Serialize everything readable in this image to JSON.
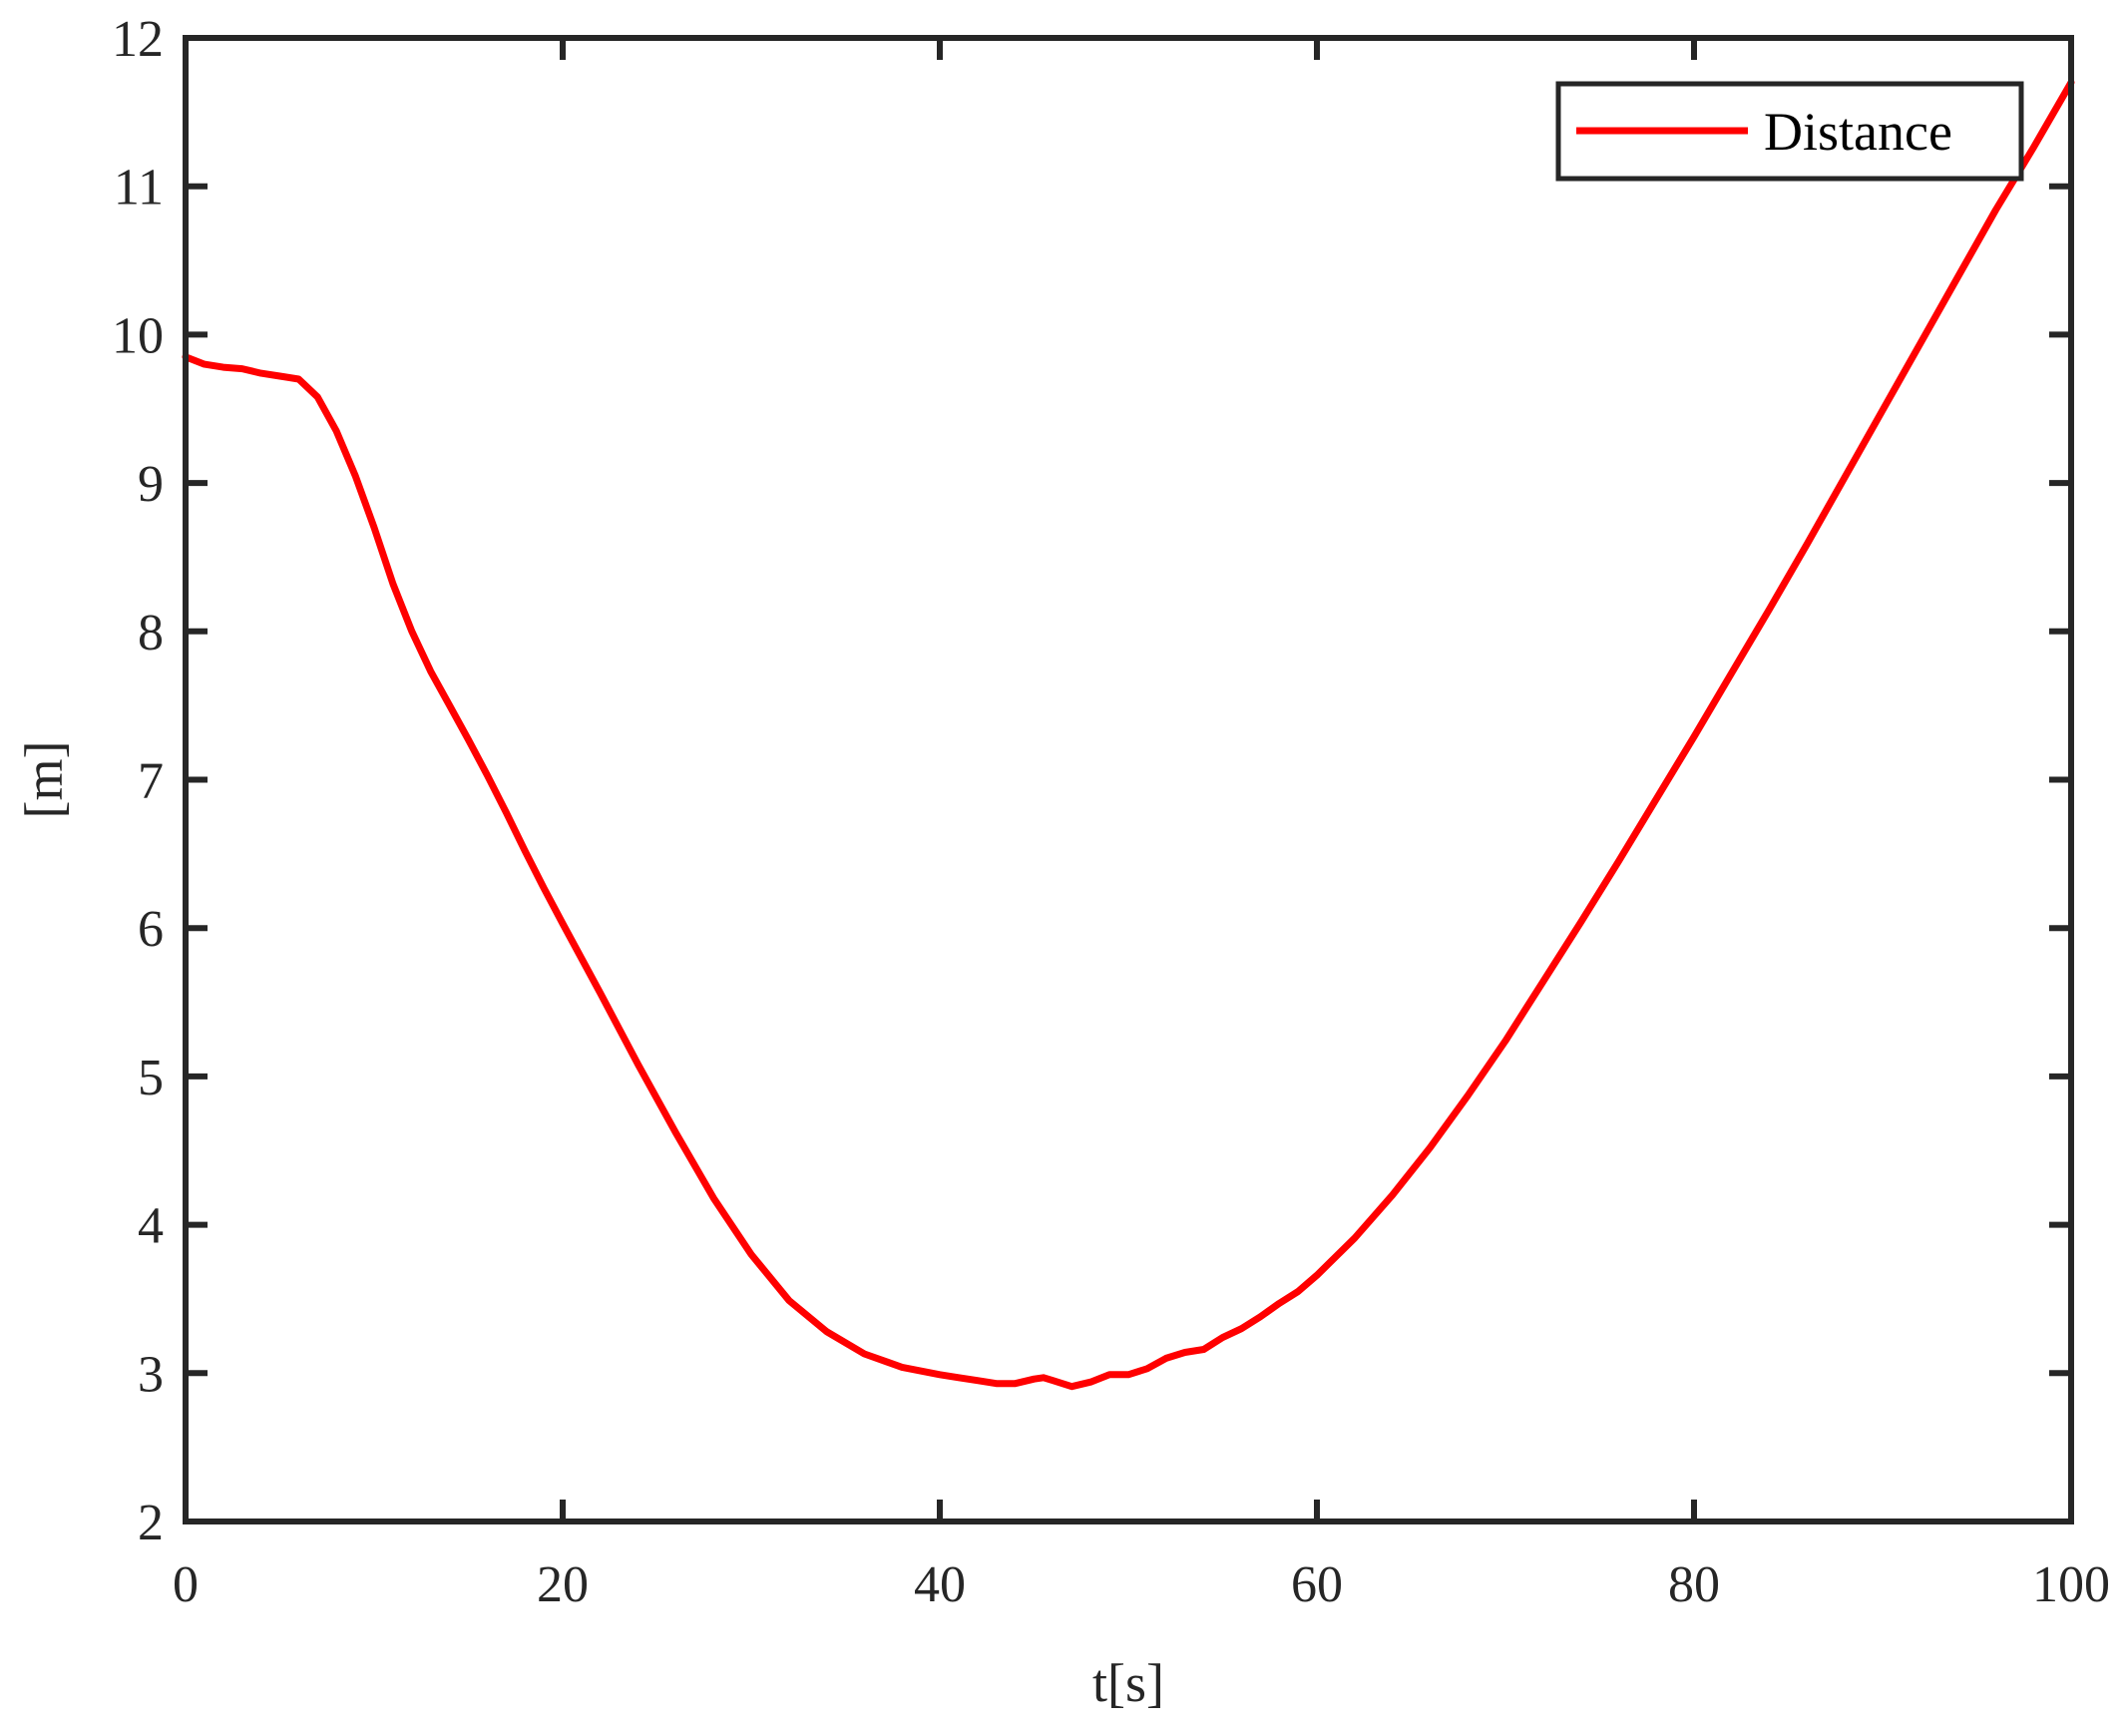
{
  "chart_data": {
    "type": "line",
    "title": "",
    "xlabel": "t[s]",
    "ylabel": "[m]",
    "xlim": [
      0,
      100
    ],
    "ylim": [
      2,
      12
    ],
    "xticks": [
      0,
      20,
      40,
      60,
      80,
      100
    ],
    "yticks": [
      2,
      3,
      4,
      5,
      6,
      7,
      8,
      9,
      10,
      11,
      12
    ],
    "grid": false,
    "legend_position": "top-right",
    "series": [
      {
        "name": "Distance",
        "color": "#ff0000",
        "x": [
          0,
          1,
          2,
          3,
          4,
          5,
          6,
          7,
          8,
          9,
          10,
          11,
          12,
          13,
          14,
          15,
          16,
          17,
          18,
          19,
          20,
          22,
          24,
          26,
          28,
          30,
          32,
          34,
          36,
          38,
          40,
          41,
          42,
          43,
          44,
          45,
          45.5,
          46,
          47,
          48,
          49,
          50,
          51,
          52,
          53,
          54,
          55,
          56,
          57,
          58,
          59,
          60,
          62,
          64,
          66,
          68,
          70,
          72,
          74,
          76,
          78,
          80,
          82,
          84,
          86,
          88,
          90,
          92,
          94,
          96,
          98,
          100
        ],
        "y": [
          9.85,
          9.8,
          9.78,
          9.77,
          9.74,
          9.72,
          9.7,
          9.58,
          9.35,
          9.05,
          8.7,
          8.32,
          8.0,
          7.73,
          7.5,
          7.27,
          7.03,
          6.78,
          6.52,
          6.27,
          6.03,
          5.56,
          5.08,
          4.62,
          4.18,
          3.8,
          3.49,
          3.28,
          3.13,
          3.04,
          2.99,
          2.97,
          2.95,
          2.93,
          2.93,
          2.96,
          2.97,
          2.95,
          2.91,
          2.94,
          2.99,
          2.99,
          3.03,
          3.1,
          3.14,
          3.16,
          3.24,
          3.3,
          3.38,
          3.47,
          3.55,
          3.66,
          3.91,
          4.2,
          4.52,
          4.87,
          5.24,
          5.64,
          6.04,
          6.45,
          6.87,
          7.29,
          7.72,
          8.15,
          8.59,
          9.04,
          9.49,
          9.94,
          10.39,
          10.84,
          11.26,
          11.7
        ]
      }
    ]
  }
}
